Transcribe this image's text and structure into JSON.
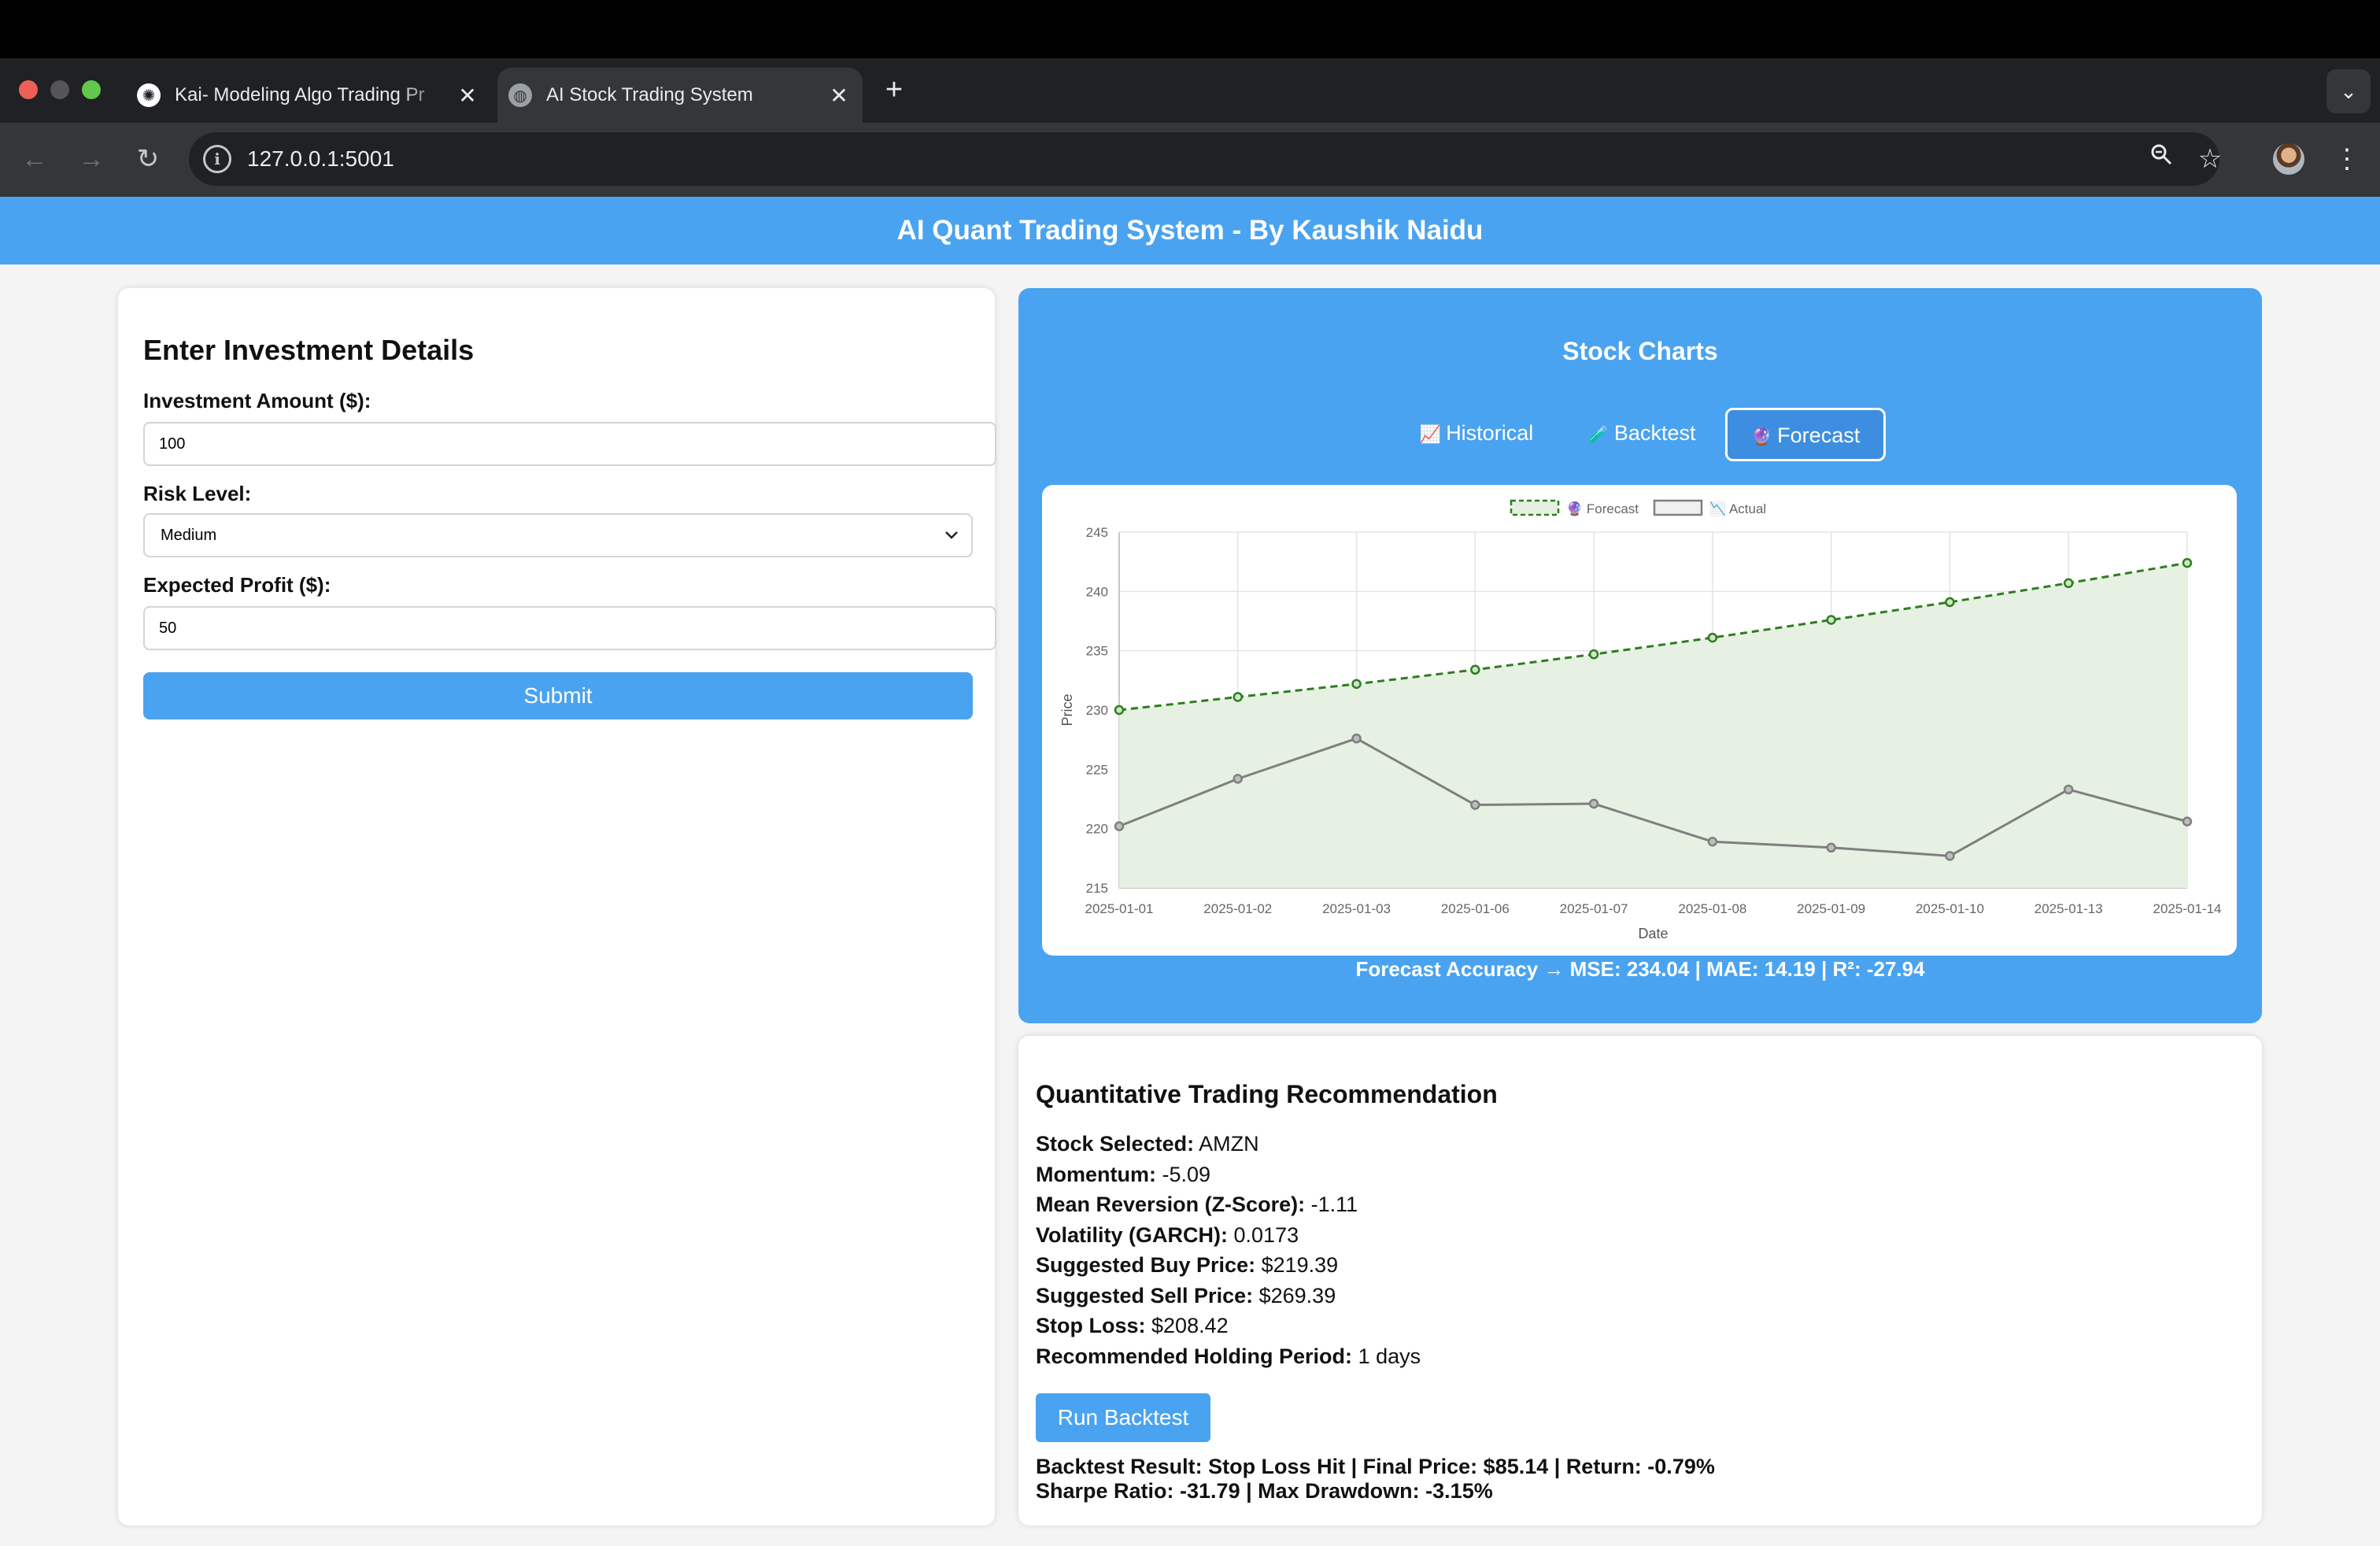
{
  "browser": {
    "tabs": [
      {
        "title": "Kai- Modeling Algo Trading Pr",
        "active": false
      },
      {
        "title": "AI Stock Trading System",
        "active": true
      }
    ],
    "url": "127.0.0.1:5001",
    "new_tab_glyph": "+",
    "close_glyph": "✕"
  },
  "app": {
    "header": "AI Quant Trading System - By Kaushik Naidu"
  },
  "form": {
    "title": "Enter Investment Details",
    "amount_label": "Investment Amount ($):",
    "amount_value": "100",
    "risk_label": "Risk Level:",
    "risk_value": "Medium",
    "profit_label": "Expected Profit ($):",
    "profit_value": "50",
    "submit_label": "Submit"
  },
  "charts": {
    "title": "Stock Charts",
    "tabs": [
      {
        "label": "Historical",
        "icon": "📈"
      },
      {
        "label": "Backtest",
        "icon": "🧪"
      },
      {
        "label": "Forecast",
        "icon": "🔮",
        "active": true
      }
    ],
    "metrics": "Forecast Accuracy → MSE: 234.04 | MAE: 14.19 | R²: -27.94"
  },
  "chart_data": {
    "type": "line",
    "categories": [
      "2025-01-01",
      "2025-01-02",
      "2025-01-03",
      "2025-01-06",
      "2025-01-07",
      "2025-01-08",
      "2025-01-09",
      "2025-01-10",
      "2025-01-13",
      "2025-01-14"
    ],
    "series": [
      {
        "name": "🔮 Forecast",
        "values": [
          230.0,
          231.1,
          232.2,
          233.4,
          234.7,
          236.1,
          237.6,
          239.1,
          240.7,
          242.4
        ],
        "color": "#2e7d1f",
        "dashed": true,
        "fill": "#e6f0e1"
      },
      {
        "name": "📉 Actual",
        "values": [
          220.2,
          224.2,
          227.6,
          222.0,
          222.1,
          218.9,
          218.4,
          217.7,
          223.3,
          220.6
        ],
        "color": "#7f7f7f",
        "dashed": false
      }
    ],
    "xlabel": "Date",
    "ylabel": "Price",
    "ylim": [
      215,
      245
    ],
    "yticks": [
      215,
      220,
      225,
      230,
      235,
      240,
      245
    ],
    "grid": true,
    "legend": "top-center"
  },
  "recommendation": {
    "title": "Quantitative Trading Recommendation",
    "rows": [
      {
        "label": "Stock Selected:",
        "value": "AMZN"
      },
      {
        "label": "Momentum:",
        "value": "-5.09"
      },
      {
        "label": "Mean Reversion (Z-Score):",
        "value": "-1.11"
      },
      {
        "label": "Volatility (GARCH):",
        "value": "0.0173"
      },
      {
        "label": "Suggested Buy Price:",
        "value": "$219.39"
      },
      {
        "label": "Suggested Sell Price:",
        "value": "$269.39"
      },
      {
        "label": "Stop Loss:",
        "value": "$208.42"
      },
      {
        "label": "Recommended Holding Period:",
        "value": "1 days"
      }
    ],
    "run_backtest_label": "Run Backtest",
    "backtest_result_line1": "Backtest Result: Stop Loss Hit | Final Price: $85.14 | Return: -0.79%",
    "backtest_result_line2": "Sharpe Ratio: -31.79 | Max Drawdown: -3.15%"
  }
}
